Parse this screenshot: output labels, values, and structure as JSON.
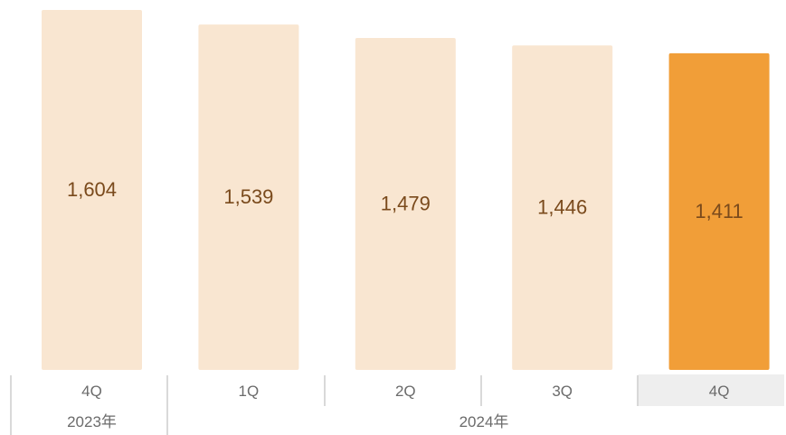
{
  "chart_data": {
    "type": "bar",
    "categories": [
      "4Q",
      "1Q",
      "2Q",
      "3Q",
      "4Q"
    ],
    "values": [
      1604,
      1539,
      1479,
      1446,
      1411
    ],
    "value_labels": [
      "1,604",
      "1,539",
      "1,479",
      "1,446",
      "1,411"
    ],
    "year_groups": [
      {
        "label": "2023年",
        "span": [
          0,
          0
        ]
      },
      {
        "label": "2024年",
        "span": [
          1,
          4
        ]
      }
    ],
    "highlight_index": 4,
    "title": "",
    "xlabel": "",
    "ylabel": "",
    "ylim": [
      0,
      1604
    ],
    "grid": false,
    "legend": "none"
  },
  "colors": {
    "bar": "#f9e6d1",
    "bar_highlight": "#f19e38",
    "value_text": "#7a4a1c",
    "axis_text": "#6b6b6b",
    "divider": "#cccccc",
    "highlight_label_bg": "#eeeeee"
  }
}
